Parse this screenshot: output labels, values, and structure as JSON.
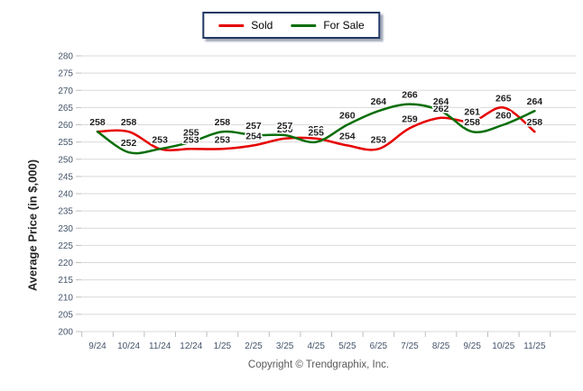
{
  "legend": {
    "items": [
      {
        "label": "Sold",
        "color": "#e60000"
      },
      {
        "label": "For Sale",
        "color": "#086e08"
      }
    ]
  },
  "footer": {
    "copyright": "Copyright © Trendgraphix, Inc."
  },
  "colors": {
    "grid": "#d9d9d9",
    "tick": "#bfbfbf",
    "axis_text": "#44546a",
    "data_label": "#1f1f1f",
    "legend_border": "#1f3864"
  },
  "chart_data": {
    "type": "line",
    "title": "",
    "xlabel": "",
    "ylabel": "Average Price (in $,000)",
    "ylim": [
      200,
      280
    ],
    "ytick_step": 5,
    "grid": "horizontal",
    "legend_position": "top-center",
    "smooth": true,
    "data_labels": true,
    "categories": [
      "9/24",
      "10/24",
      "11/24",
      "12/24",
      "1/25",
      "2/25",
      "3/25",
      "4/25",
      "5/25",
      "6/25",
      "7/25",
      "8/25",
      "9/25",
      "10/25",
      "11/25"
    ],
    "series": [
      {
        "name": "Sold",
        "color": "#e60000",
        "values": [
          258,
          258,
          253,
          253,
          253,
          254,
          256,
          256,
          254,
          253,
          259,
          262,
          261,
          265,
          258
        ]
      },
      {
        "name": "For Sale",
        "color": "#086e08",
        "values": [
          258,
          252,
          253,
          255,
          258,
          257,
          257,
          255,
          260,
          264,
          266,
          264,
          258,
          260,
          264
        ]
      }
    ]
  }
}
